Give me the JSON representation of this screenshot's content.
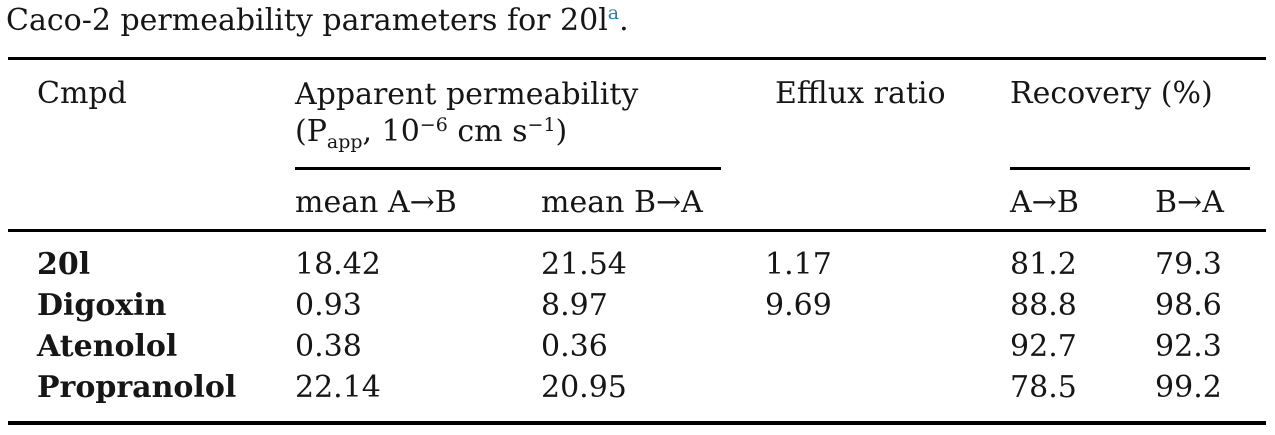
{
  "caption": {
    "text": "Caco-2 permeability parameters for 20l",
    "footnote_marker": "a",
    "period": ".",
    "marker_color": "#1d80c3"
  },
  "table": {
    "header": {
      "cmpd": "Cmpd",
      "apparent_permeability": {
        "title": "Apparent permeability",
        "unit_open": "(P",
        "unit_sub": "app",
        "unit_mid1": ", 10",
        "unit_exp1": "−6",
        "unit_mid2": " cm s",
        "unit_exp2": "−1",
        "unit_close": ")"
      },
      "efflux": "Efflux ratio",
      "recovery": "Recovery (%)",
      "subheaders": {
        "mean_ab": "mean A→B",
        "mean_ba": "mean B→A",
        "rec_ab": "A→B",
        "rec_ba": "B→A"
      }
    },
    "rows": [
      {
        "name": "20l",
        "mean_ab": "18.42",
        "mean_ba": "21.54",
        "efflux": "1.17",
        "rec_ab": "81.2",
        "rec_ba": "79.3"
      },
      {
        "name": "Digoxin",
        "mean_ab": "0.93",
        "mean_ba": "8.97",
        "efflux": "9.69",
        "rec_ab": "88.8",
        "rec_ba": "98.6"
      },
      {
        "name": "Atenolol",
        "mean_ab": "0.38",
        "mean_ba": "0.36",
        "efflux": "",
        "rec_ab": "92.7",
        "rec_ba": "92.3"
      },
      {
        "name": "Propranolol",
        "mean_ab": "22.14",
        "mean_ba": "20.95",
        "efflux": "",
        "rec_ab": "78.5",
        "rec_ba": "99.2"
      }
    ]
  }
}
